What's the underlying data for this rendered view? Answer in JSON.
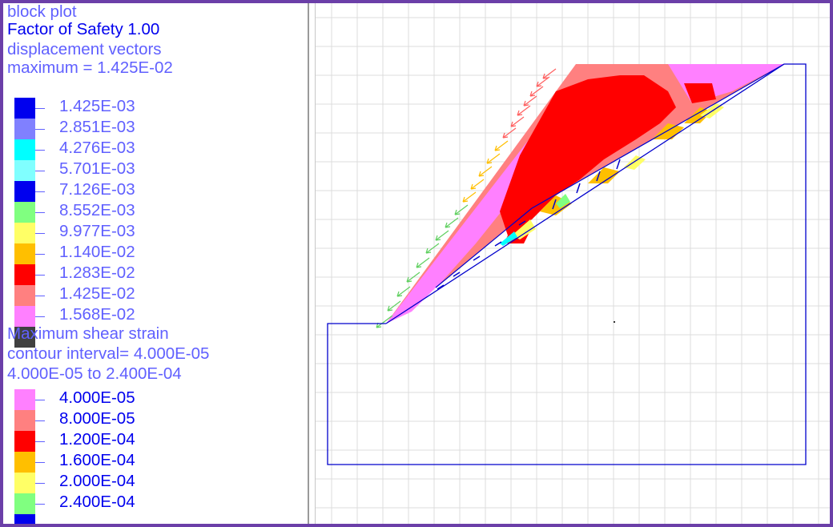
{
  "legend": {
    "plot_type": "block plot",
    "fos": "Factor of Safety  1.00",
    "disp_title": "displacement vectors",
    "disp_max": "maximum =    1.425E-02",
    "disp_levels": [
      {
        "label": "1.425E-03",
        "color": "#0000ee"
      },
      {
        "label": "2.851E-03",
        "color": "#8080ff"
      },
      {
        "label": "4.276E-03",
        "color": "#00ffff"
      },
      {
        "label": "5.701E-03",
        "color": "#80ffff"
      },
      {
        "label": "7.126E-03",
        "color": "#0000ee"
      },
      {
        "label": "8.552E-03",
        "color": "#80ff80"
      },
      {
        "label": "9.977E-03",
        "color": "#ffff66"
      },
      {
        "label": "1.140E-02",
        "color": "#ffbf00"
      },
      {
        "label": "1.283E-02",
        "color": "#ff0000"
      },
      {
        "label": "1.425E-02",
        "color": "#ff8080"
      },
      {
        "label": "1.568E-02",
        "color": "#ff80ff"
      },
      {
        "label": "",
        "color": "#404040"
      }
    ],
    "strain_title": "Maximum shear strain",
    "strain_interval": "contour interval= 4.000E-05",
    "strain_range": "4.000E-05 to  2.400E-04",
    "strain_levels": [
      {
        "label": "4.000E-05",
        "color": "#ff80ff"
      },
      {
        "label": "8.000E-05",
        "color": "#ff8080"
      },
      {
        "label": "1.200E-04",
        "color": "#ff0000"
      },
      {
        "label": "1.600E-04",
        "color": "#ffbf00"
      },
      {
        "label": "2.000E-04",
        "color": "#ffff66"
      },
      {
        "label": "2.400E-04",
        "color": "#80ff80"
      },
      {
        "label": "",
        "color": "#0000ee"
      }
    ]
  },
  "colors": {
    "frame": "#6b3fa8",
    "grid": "#dcdcdc",
    "outline": "#0000cc",
    "strain_low": "#ff80ff",
    "strain_mid": "#ff8080",
    "strain_high": "#ff0000",
    "strain_orange": "#ffbf00",
    "strain_yellow": "#ffff66",
    "strain_green": "#80ff80",
    "strain_cyan": "#00ffff"
  }
}
